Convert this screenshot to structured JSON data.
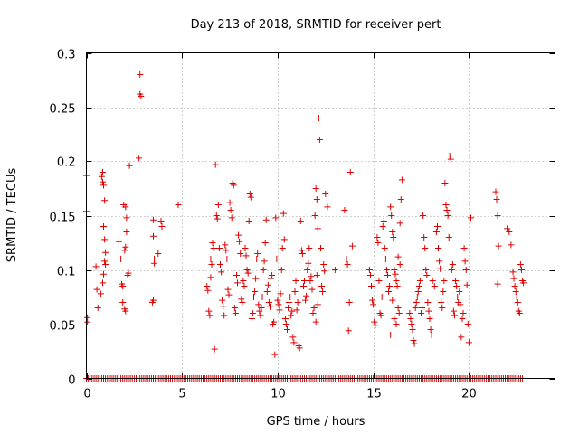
{
  "chart_data": {
    "type": "scatter",
    "title": "Day 213 of 2018, SRMTID for receiver pert",
    "xlabel": "GPS time / hours",
    "ylabel": "SRMTID / TECUs",
    "xlim": [
      0,
      24.5
    ],
    "ylim": [
      0,
      0.3
    ],
    "xticks": [
      0,
      5,
      10,
      15,
      20
    ],
    "xtick_labels": [
      "0",
      "5",
      "10",
      "15",
      "20"
    ],
    "yticks": [
      0,
      0.05,
      0.1,
      0.15,
      0.2,
      0.25,
      0.3
    ],
    "ytick_labels": [
      "0",
      "0.05",
      "0.1",
      "0.15",
      "0.2",
      "0.25",
      "0.3"
    ],
    "grid": true,
    "marker": "plus",
    "series": [
      {
        "name": "SRMTID",
        "color": "#e00000",
        "points": [
          [
            0.0,
            0.187
          ],
          [
            0.0,
            0.154
          ],
          [
            0.05,
            0.056
          ],
          [
            0.05,
            0.052
          ],
          [
            0.5,
            0.103
          ],
          [
            0.55,
            0.082
          ],
          [
            0.6,
            0.065
          ],
          [
            0.8,
            0.186
          ],
          [
            0.85,
            0.181
          ],
          [
            0.9,
            0.178
          ],
          [
            0.85,
            0.19
          ],
          [
            0.95,
            0.164
          ],
          [
            0.9,
            0.14
          ],
          [
            0.95,
            0.128
          ],
          [
            1.0,
            0.116
          ],
          [
            1.0,
            0.105
          ],
          [
            0.9,
            0.096
          ],
          [
            0.85,
            0.088
          ],
          [
            0.75,
            0.078
          ],
          [
            0.95,
            0.108
          ],
          [
            1.7,
            0.126
          ],
          [
            1.8,
            0.11
          ],
          [
            1.85,
            0.087
          ],
          [
            1.9,
            0.085
          ],
          [
            1.95,
            0.16
          ],
          [
            2.05,
            0.158
          ],
          [
            2.1,
            0.148
          ],
          [
            2.1,
            0.135
          ],
          [
            2.05,
            0.121
          ],
          [
            2.0,
            0.118
          ],
          [
            1.9,
            0.07
          ],
          [
            2.0,
            0.064
          ],
          [
            2.05,
            0.062
          ],
          [
            2.15,
            0.095
          ],
          [
            2.2,
            0.097
          ],
          [
            2.25,
            0.196
          ],
          [
            2.8,
            0.28
          ],
          [
            2.8,
            0.262
          ],
          [
            2.85,
            0.26
          ],
          [
            2.75,
            0.203
          ],
          [
            3.5,
            0.146
          ],
          [
            3.5,
            0.131
          ],
          [
            3.55,
            0.11
          ],
          [
            3.55,
            0.106
          ],
          [
            3.5,
            0.072
          ],
          [
            3.45,
            0.07
          ],
          [
            3.9,
            0.145
          ],
          [
            3.95,
            0.14
          ],
          [
            3.75,
            0.115
          ],
          [
            4.8,
            0.16
          ],
          [
            6.3,
            0.085
          ],
          [
            6.35,
            0.081
          ],
          [
            6.4,
            0.062
          ],
          [
            6.45,
            0.058
          ],
          [
            6.5,
            0.11
          ],
          [
            6.55,
            0.105
          ],
          [
            6.6,
            0.125
          ],
          [
            6.65,
            0.12
          ],
          [
            6.5,
            0.093
          ],
          [
            6.7,
            0.027
          ],
          [
            6.75,
            0.197
          ],
          [
            6.8,
            0.15
          ],
          [
            6.85,
            0.147
          ],
          [
            6.9,
            0.16
          ],
          [
            6.95,
            0.12
          ],
          [
            7.0,
            0.105
          ],
          [
            7.05,
            0.098
          ],
          [
            7.1,
            0.072
          ],
          [
            7.15,
            0.066
          ],
          [
            7.2,
            0.058
          ],
          [
            7.25,
            0.123
          ],
          [
            7.3,
            0.118
          ],
          [
            7.35,
            0.11
          ],
          [
            7.4,
            0.082
          ],
          [
            7.45,
            0.077
          ],
          [
            7.5,
            0.162
          ],
          [
            7.55,
            0.155
          ],
          [
            7.6,
            0.148
          ],
          [
            7.65,
            0.18
          ],
          [
            7.7,
            0.178
          ],
          [
            7.75,
            0.065
          ],
          [
            7.8,
            0.06
          ],
          [
            7.85,
            0.095
          ],
          [
            7.9,
            0.088
          ],
          [
            7.95,
            0.132
          ],
          [
            8.0,
            0.126
          ],
          [
            8.05,
            0.115
          ],
          [
            8.1,
            0.073
          ],
          [
            8.15,
            0.07
          ],
          [
            8.2,
            0.09
          ],
          [
            8.25,
            0.085
          ],
          [
            8.3,
            0.12
          ],
          [
            8.35,
            0.113
          ],
          [
            8.4,
            0.1
          ],
          [
            8.45,
            0.097
          ],
          [
            8.5,
            0.145
          ],
          [
            8.55,
            0.17
          ],
          [
            8.6,
            0.167
          ],
          [
            8.65,
            0.055
          ],
          [
            8.7,
            0.06
          ],
          [
            8.75,
            0.075
          ],
          [
            8.8,
            0.08
          ],
          [
            8.85,
            0.092
          ],
          [
            8.9,
            0.11
          ],
          [
            8.95,
            0.115
          ],
          [
            9.0,
            0.068
          ],
          [
            9.05,
            0.062
          ],
          [
            9.1,
            0.058
          ],
          [
            9.15,
            0.065
          ],
          [
            9.2,
            0.075
          ],
          [
            9.25,
            0.1
          ],
          [
            9.3,
            0.108
          ],
          [
            9.35,
            0.125
          ],
          [
            9.4,
            0.146
          ],
          [
            9.45,
            0.08
          ],
          [
            9.5,
            0.086
          ],
          [
            9.55,
            0.07
          ],
          [
            9.6,
            0.066
          ],
          [
            9.65,
            0.092
          ],
          [
            9.7,
            0.095
          ],
          [
            9.75,
            0.05
          ],
          [
            9.8,
            0.052
          ],
          [
            9.85,
            0.022
          ],
          [
            9.9,
            0.148
          ],
          [
            9.95,
            0.11
          ],
          [
            10.0,
            0.072
          ],
          [
            10.05,
            0.068
          ],
          [
            10.1,
            0.063
          ],
          [
            10.15,
            0.078
          ],
          [
            10.2,
            0.1
          ],
          [
            10.25,
            0.12
          ],
          [
            10.3,
            0.152
          ],
          [
            10.35,
            0.128
          ],
          [
            10.4,
            0.055
          ],
          [
            10.45,
            0.05
          ],
          [
            10.5,
            0.045
          ],
          [
            10.55,
            0.065
          ],
          [
            10.6,
            0.07
          ],
          [
            10.65,
            0.075
          ],
          [
            10.7,
            0.058
          ],
          [
            10.75,
            0.062
          ],
          [
            10.8,
            0.038
          ],
          [
            10.85,
            0.033
          ],
          [
            10.9,
            0.08
          ],
          [
            10.95,
            0.09
          ],
          [
            11.0,
            0.063
          ],
          [
            11.05,
            0.07
          ],
          [
            11.1,
            0.03
          ],
          [
            11.15,
            0.028
          ],
          [
            11.2,
            0.145
          ],
          [
            11.25,
            0.118
          ],
          [
            11.3,
            0.115
          ],
          [
            11.35,
            0.085
          ],
          [
            11.4,
            0.09
          ],
          [
            11.45,
            0.072
          ],
          [
            11.5,
            0.076
          ],
          [
            11.55,
            0.1
          ],
          [
            11.6,
            0.106
          ],
          [
            11.65,
            0.12
          ],
          [
            11.7,
            0.09
          ],
          [
            11.75,
            0.094
          ],
          [
            11.8,
            0.082
          ],
          [
            11.85,
            0.06
          ],
          [
            11.9,
            0.065
          ],
          [
            11.95,
            0.15
          ],
          [
            12.0,
            0.175
          ],
          [
            12.05,
            0.165
          ],
          [
            12.1,
            0.138
          ],
          [
            12.15,
            0.24
          ],
          [
            12.2,
            0.22
          ],
          [
            12.25,
            0.12
          ],
          [
            12.3,
            0.085
          ],
          [
            12.35,
            0.08
          ],
          [
            12.4,
            0.105
          ],
          [
            12.45,
            0.099
          ],
          [
            12.5,
            0.17
          ],
          [
            12.6,
            0.158
          ],
          [
            12.05,
            0.095
          ],
          [
            12.1,
            0.068
          ],
          [
            12.0,
            0.052
          ],
          [
            13.0,
            0.1
          ],
          [
            13.5,
            0.155
          ],
          [
            13.6,
            0.11
          ],
          [
            13.65,
            0.105
          ],
          [
            13.7,
            0.044
          ],
          [
            13.75,
            0.07
          ],
          [
            13.8,
            0.19
          ],
          [
            13.9,
            0.122
          ],
          [
            14.8,
            0.1
          ],
          [
            14.85,
            0.095
          ],
          [
            14.9,
            0.085
          ],
          [
            14.95,
            0.072
          ],
          [
            15.0,
            0.068
          ],
          [
            15.05,
            0.052
          ],
          [
            15.1,
            0.049
          ],
          [
            15.2,
            0.13
          ],
          [
            15.25,
            0.125
          ],
          [
            15.3,
            0.09
          ],
          [
            15.35,
            0.06
          ],
          [
            15.4,
            0.058
          ],
          [
            15.45,
            0.075
          ],
          [
            15.5,
            0.14
          ],
          [
            15.55,
            0.145
          ],
          [
            15.6,
            0.12
          ],
          [
            15.65,
            0.11
          ],
          [
            15.7,
            0.1
          ],
          [
            15.75,
            0.095
          ],
          [
            15.8,
            0.08
          ],
          [
            15.85,
            0.085
          ],
          [
            15.9,
            0.158
          ],
          [
            15.95,
            0.15
          ],
          [
            16.0,
            0.135
          ],
          [
            16.05,
            0.13
          ],
          [
            16.1,
            0.1
          ],
          [
            16.15,
            0.096
          ],
          [
            16.2,
            0.09
          ],
          [
            16.25,
            0.085
          ],
          [
            16.3,
            0.065
          ],
          [
            16.35,
            0.06
          ],
          [
            16.4,
            0.143
          ],
          [
            16.45,
            0.165
          ],
          [
            16.5,
            0.183
          ],
          [
            16.0,
            0.072
          ],
          [
            16.1,
            0.055
          ],
          [
            16.2,
            0.05
          ],
          [
            15.9,
            0.04
          ],
          [
            16.3,
            0.112
          ],
          [
            16.4,
            0.105
          ],
          [
            16.9,
            0.06
          ],
          [
            16.95,
            0.055
          ],
          [
            17.0,
            0.05
          ],
          [
            17.05,
            0.045
          ],
          [
            17.1,
            0.035
          ],
          [
            17.15,
            0.032
          ],
          [
            17.2,
            0.065
          ],
          [
            17.25,
            0.07
          ],
          [
            17.3,
            0.075
          ],
          [
            17.35,
            0.08
          ],
          [
            17.4,
            0.085
          ],
          [
            17.45,
            0.09
          ],
          [
            17.5,
            0.06
          ],
          [
            17.55,
            0.065
          ],
          [
            17.6,
            0.15
          ],
          [
            17.65,
            0.13
          ],
          [
            17.7,
            0.12
          ],
          [
            17.75,
            0.1
          ],
          [
            17.8,
            0.095
          ],
          [
            17.85,
            0.07
          ],
          [
            17.9,
            0.062
          ],
          [
            17.95,
            0.055
          ],
          [
            18.0,
            0.045
          ],
          [
            18.05,
            0.04
          ],
          [
            18.1,
            0.09
          ],
          [
            18.2,
            0.085
          ],
          [
            18.3,
            0.135
          ],
          [
            18.35,
            0.14
          ],
          [
            18.4,
            0.12
          ],
          [
            18.45,
            0.108
          ],
          [
            18.5,
            0.101
          ],
          [
            18.55,
            0.07
          ],
          [
            18.6,
            0.065
          ],
          [
            18.65,
            0.08
          ],
          [
            18.7,
            0.09
          ],
          [
            18.75,
            0.18
          ],
          [
            18.8,
            0.16
          ],
          [
            18.85,
            0.155
          ],
          [
            18.9,
            0.15
          ],
          [
            18.95,
            0.13
          ],
          [
            19.0,
            0.205
          ],
          [
            19.05,
            0.202
          ],
          [
            19.1,
            0.1
          ],
          [
            19.15,
            0.105
          ],
          [
            19.2,
            0.062
          ],
          [
            19.25,
            0.058
          ],
          [
            19.3,
            0.09
          ],
          [
            19.35,
            0.085
          ],
          [
            19.4,
            0.075
          ],
          [
            19.45,
            0.07
          ],
          [
            19.5,
            0.08
          ],
          [
            19.55,
            0.068
          ],
          [
            19.6,
            0.038
          ],
          [
            19.65,
            0.055
          ],
          [
            19.7,
            0.06
          ],
          [
            19.75,
            0.12
          ],
          [
            19.8,
            0.108
          ],
          [
            19.85,
            0.1
          ],
          [
            19.9,
            0.086
          ],
          [
            19.95,
            0.05
          ],
          [
            20.0,
            0.033
          ],
          [
            20.1,
            0.148
          ],
          [
            21.4,
            0.172
          ],
          [
            21.45,
            0.165
          ],
          [
            21.5,
            0.15
          ],
          [
            21.55,
            0.122
          ],
          [
            21.5,
            0.087
          ],
          [
            22.0,
            0.138
          ],
          [
            22.1,
            0.135
          ],
          [
            22.2,
            0.123
          ],
          [
            22.3,
            0.098
          ],
          [
            22.35,
            0.092
          ],
          [
            22.4,
            0.085
          ],
          [
            22.45,
            0.08
          ],
          [
            22.5,
            0.075
          ],
          [
            22.55,
            0.07
          ],
          [
            22.6,
            0.062
          ],
          [
            22.65,
            0.06
          ],
          [
            22.7,
            0.105
          ],
          [
            22.75,
            0.1
          ],
          [
            22.8,
            0.09
          ],
          [
            22.85,
            0.088
          ]
        ]
      }
    ],
    "zero_band": {
      "value": 0,
      "note": "Dense run of markers along y = 0",
      "x_start": 0,
      "x_end": 22.8,
      "step": 0.1
    }
  }
}
